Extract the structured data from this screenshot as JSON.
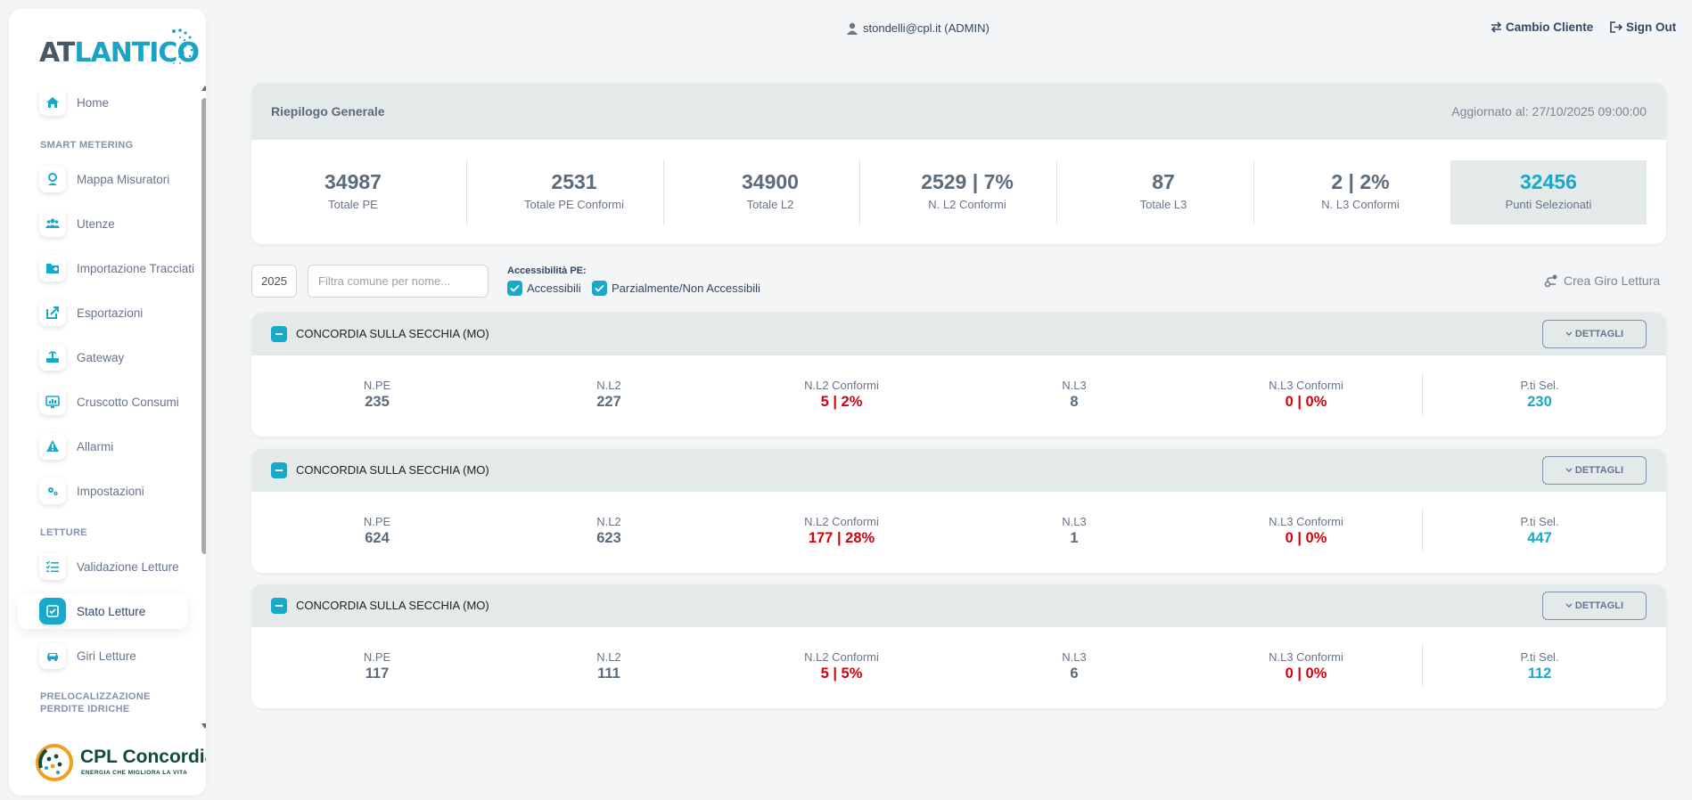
{
  "brand": {
    "logo_text_a": "AT",
    "logo_text_b": "LANTICO",
    "company_name": "CPL Concordia",
    "company_tagline": "ENERGIA CHE MIGLIORA LA VITA",
    "accent": "#17a9c9"
  },
  "header": {
    "user": "stondelli@cpl.it (ADMIN)",
    "cambio_cliente": "Cambio Cliente",
    "sign_out": "Sign Out"
  },
  "sidebar": {
    "items": [
      {
        "label": "Home",
        "icon": "home-icon"
      },
      {
        "label": "Mappa Misuratori",
        "icon": "map-pin-icon"
      },
      {
        "label": "Utenze",
        "icon": "users-icon"
      },
      {
        "label": "Importazione Tracciati",
        "icon": "folder-import-icon"
      },
      {
        "label": "Esportazioni",
        "icon": "export-icon"
      },
      {
        "label": "Gateway",
        "icon": "gateway-icon"
      },
      {
        "label": "Cruscotto Consumi",
        "icon": "dashboard-icon"
      },
      {
        "label": "Allarmi",
        "icon": "alarm-icon"
      },
      {
        "label": "Impostazioni",
        "icon": "settings-icon"
      },
      {
        "label": "Validazione Letture",
        "icon": "list-check-icon"
      },
      {
        "label": "Stato Letture",
        "icon": "check-square-icon"
      },
      {
        "label": "Giri Letture",
        "icon": "car-icon"
      }
    ],
    "sections": [
      "SMART METERING",
      "LETTURE",
      "PRELOCALIZZAZIONE PERDITE IDRICHE"
    ]
  },
  "summary": {
    "title": "Riepilogo Generale",
    "updated": "Aggiornato al: 27/10/2025 09:00:00",
    "stats": [
      {
        "value": "34987",
        "label": "Totale PE"
      },
      {
        "value": "2531",
        "label": "Totale PE Conformi"
      },
      {
        "value": "34900",
        "label": "Totale L2"
      },
      {
        "value": "2529 | 7%",
        "label": "N. L2 Conformi"
      },
      {
        "value": "87",
        "label": "Totale L3"
      },
      {
        "value": "2 | 2%",
        "label": "N. L3 Conformi"
      },
      {
        "value": "32456",
        "label": "Punti Selezionati"
      }
    ]
  },
  "filters": {
    "year": "2025",
    "search_placeholder": "Filtra comune per nome...",
    "access_title": "Accessibilità PE:",
    "chk_accessibili": "Accessibili",
    "chk_parziali": "Parzialmente/Non Accessibili",
    "crea_giro": "Crea Giro Lettura"
  },
  "cards": [
    {
      "name": "CONCORDIA SULLA SECCHIA (MO)",
      "details": "DETTAGLI",
      "stats": [
        {
          "label": "N.PE",
          "value": "235"
        },
        {
          "label": "N.L2",
          "value": "227"
        },
        {
          "label": "N.L2 Conformi",
          "value": "5 | 2%"
        },
        {
          "label": "N.L3",
          "value": "8"
        },
        {
          "label": "N.L3 Conformi",
          "value": "0 | 0%"
        },
        {
          "label": "P.ti Sel.",
          "value": "230"
        }
      ]
    },
    {
      "name": "CONCORDIA SULLA SECCHIA (MO)",
      "details": "DETTAGLI",
      "stats": [
        {
          "label": "N.PE",
          "value": "624"
        },
        {
          "label": "N.L2",
          "value": "623"
        },
        {
          "label": "N.L2 Conformi",
          "value": "177 | 28%"
        },
        {
          "label": "N.L3",
          "value": "1"
        },
        {
          "label": "N.L3 Conformi",
          "value": "0 | 0%"
        },
        {
          "label": "P.ti Sel.",
          "value": "447"
        }
      ]
    },
    {
      "name": "CONCORDIA SULLA SECCHIA (MO)",
      "details": "DETTAGLI",
      "stats": [
        {
          "label": "N.PE",
          "value": "117"
        },
        {
          "label": "N.L2",
          "value": "111"
        },
        {
          "label": "N.L2 Conformi",
          "value": "5 | 5%"
        },
        {
          "label": "N.L3",
          "value": "6"
        },
        {
          "label": "N.L3 Conformi",
          "value": "0 | 0%"
        },
        {
          "label": "P.ti Sel.",
          "value": "112"
        }
      ]
    }
  ]
}
